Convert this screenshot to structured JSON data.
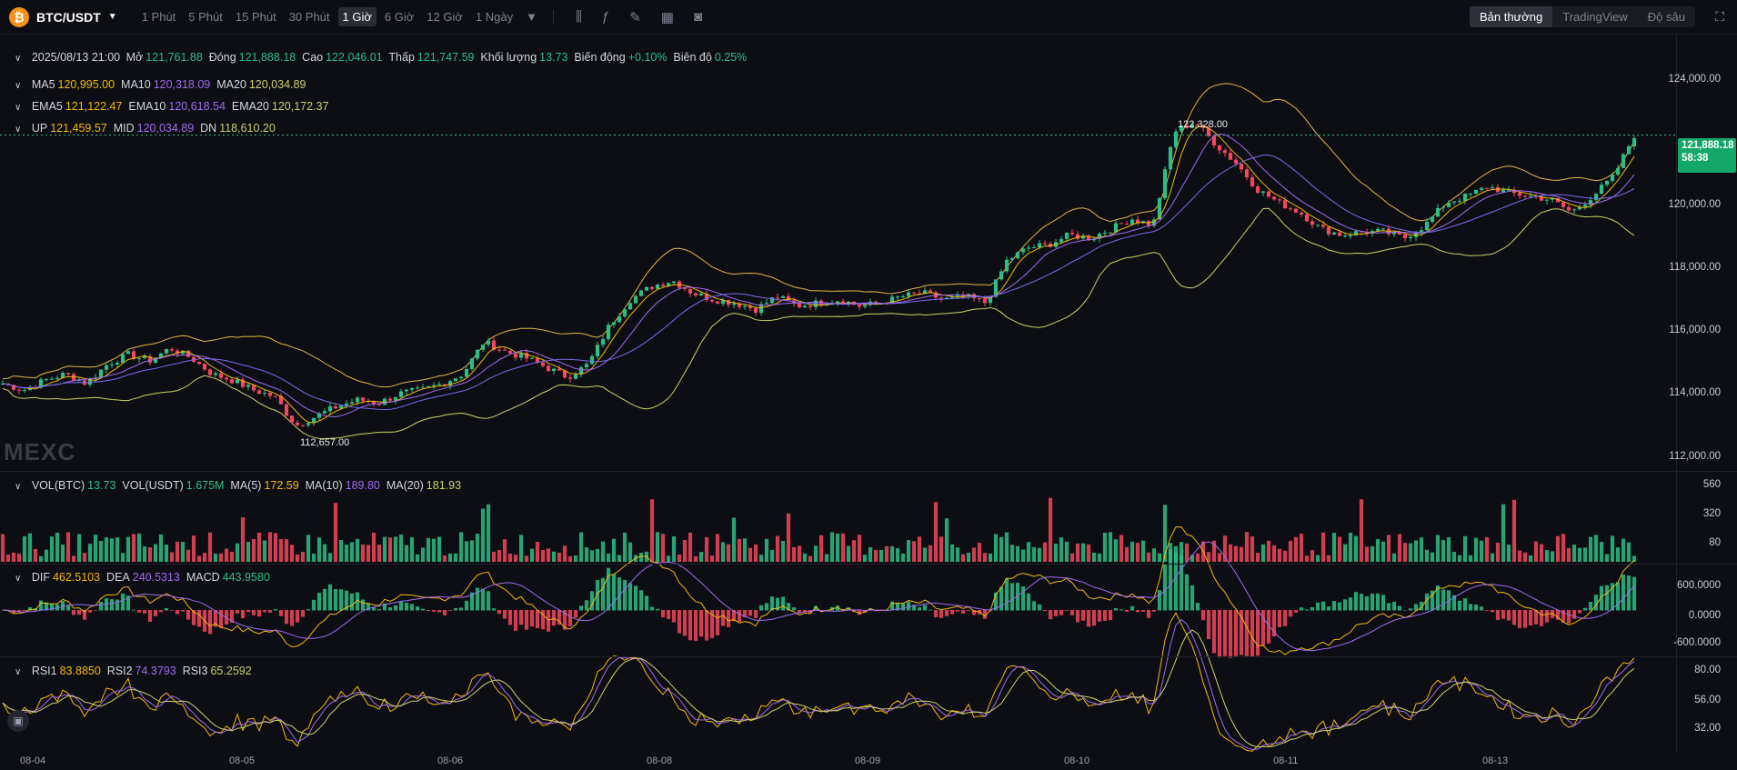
{
  "toolbar": {
    "pair": "BTC/USDT",
    "timeframes": [
      "1 Phút",
      "5 Phút",
      "15 Phút",
      "30 Phút",
      "1 Giờ",
      "6 Giờ",
      "12 Giờ",
      "1 Ngày"
    ],
    "active_timeframe": "1 Giờ",
    "tool_icons": [
      "indicator-icon",
      "formula-icon",
      "draw-icon",
      "layout-icon",
      "camera-icon"
    ],
    "views": [
      "Bản thường",
      "TradingView",
      "Độ sâu"
    ],
    "active_view": "Bản thường"
  },
  "ohlc": {
    "date": "2025/08/13 21:00",
    "open_label": "Mở",
    "open": "121,761.88",
    "close_label": "Đóng",
    "close": "121,888.18",
    "high_label": "Cao",
    "high": "122,046.01",
    "low_label": "Thấp",
    "low": "121,747.59",
    "volume_label": "Khối lượng",
    "volume": "13.73",
    "change_label": "Biến động",
    "change": "+0.10%",
    "amplitude_label": "Biên độ",
    "amplitude": "0.25%"
  },
  "ma": {
    "l1": "MA5",
    "v1": "120,995.00",
    "l2": "MA10",
    "v2": "120,318.09",
    "l3": "MA20",
    "v3": "120,034.89"
  },
  "ema": {
    "l1": "EMA5",
    "v1": "121,122.47",
    "l2": "EMA10",
    "v2": "120,618.54",
    "l3": "EMA20",
    "v3": "120,172.37"
  },
  "boll": {
    "l1": "UP",
    "v1": "121,459.57",
    "l2": "MID",
    "v2": "120,034.89",
    "l3": "DN",
    "v3": "118,610.20"
  },
  "vol": {
    "l1": "VOL(BTC)",
    "v1": "13.73",
    "l2": "VOL(USDT)",
    "v2": "1.675M",
    "l3": "MA(5)",
    "v3": "172.59",
    "l4": "MA(10)",
    "v4": "189.80",
    "l5": "MA(20)",
    "v5": "181.93"
  },
  "macd": {
    "l1": "DIF",
    "v1": "462.5103",
    "l2": "DEA",
    "v2": "240.5313",
    "l3": "MACD",
    "v3": "443.9580"
  },
  "rsi": {
    "l1": "RSI1",
    "v1": "83.8850",
    "l2": "RSI2",
    "v2": "74.3793",
    "l3": "RSI3",
    "v3": "65.2592"
  },
  "price_axis": [
    "124,000.00",
    "122,000.00",
    "120,000.00",
    "118,000.00",
    "116,000.00",
    "114,000.00",
    "112,000.00"
  ],
  "vol_axis": [
    "560",
    "320",
    "80"
  ],
  "macd_axis": [
    "600.0000",
    "0.0000",
    "-600.0000"
  ],
  "rsi_axis": [
    "80.00",
    "56.00",
    "32.00"
  ],
  "dates": [
    "08-04",
    "08-05",
    "08-06",
    "08-08",
    "08-09",
    "08-10",
    "08-11",
    "08-13"
  ],
  "last_price": {
    "price": "121,888.18",
    "countdown": "58:38"
  },
  "high_marker": "122,328.00",
  "low_marker": "112,657.00",
  "watermark": "MEXC",
  "colors": {
    "up": "#2ebd85",
    "down": "#f6465d",
    "bg": "#0d0e13",
    "ma5": "#f0b90b",
    "ma10": "#a06bf0",
    "ma20": "#cbd06a"
  },
  "chart_data": {
    "type": "candlestick",
    "price_ylim": [
      111500,
      125000
    ],
    "close_series": [
      114200,
      114000,
      114300,
      114500,
      114200,
      114800,
      115100,
      114900,
      115300,
      115000,
      114500,
      114300,
      114000,
      113800,
      112900,
      113200,
      113500,
      113700,
      113600,
      113900,
      114000,
      114200,
      114500,
      115500,
      115200,
      115000,
      114700,
      114400,
      114800,
      116000,
      116800,
      117200,
      117400,
      117000,
      116800,
      116700,
      116500,
      116900,
      116600,
      116700,
      116800,
      116600,
      116700,
      116900,
      117000,
      116800,
      116900,
      116700,
      118000,
      118400,
      118500,
      118800,
      118700,
      119000,
      119300,
      119100,
      122000,
      122300,
      121600,
      121000,
      120200,
      119800,
      119500,
      119000,
      118800,
      118900,
      118900,
      118700,
      119100,
      119800,
      120000,
      120300,
      120100,
      120000,
      119900,
      119500,
      120000,
      120600,
      121888
    ]
  }
}
